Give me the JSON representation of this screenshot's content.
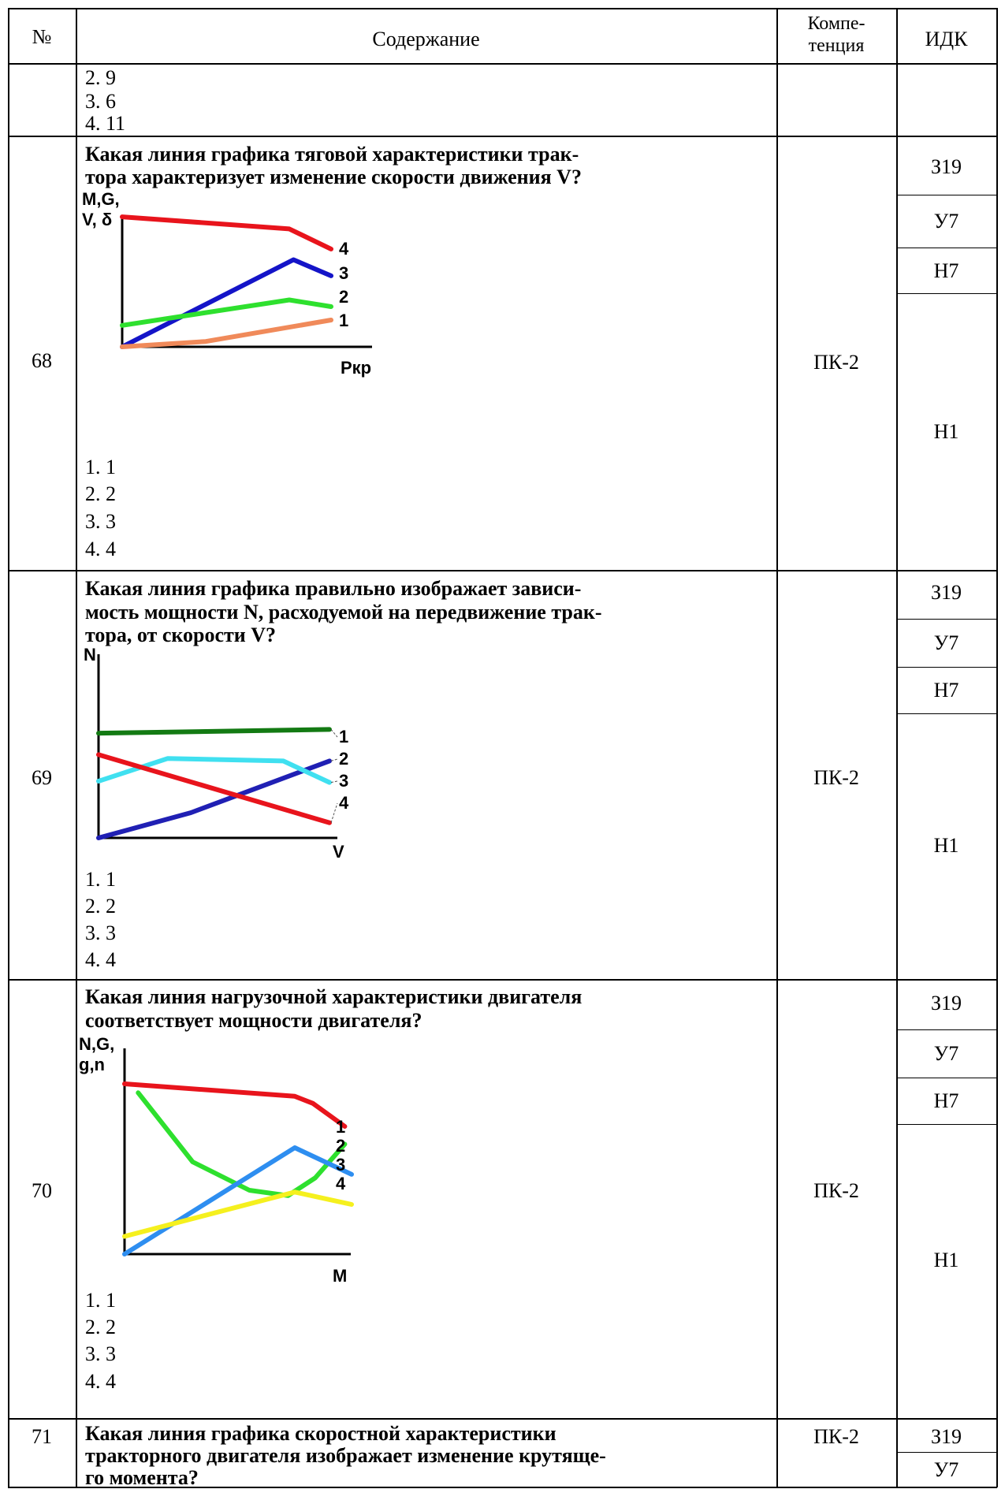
{
  "header": {
    "num": "№",
    "content": "Содержание",
    "comp_line1": "Компе-",
    "comp_line2": "тенция",
    "idk": "ИДК"
  },
  "top_options": [
    "2. 9",
    "3. 6",
    "4. 11"
  ],
  "questions": [
    {
      "num": "68",
      "text_lines": [
        "Какая  линия  графика  тяговой характеристики  трак-",
        "тора характеризует  изменение скорости движения V?"
      ],
      "competence": "ПК-2",
      "idk": [
        "З19",
        "У7",
        "Н7",
        "Н1"
      ],
      "options": [
        "1. 1",
        "2. 2",
        "3. 3",
        "4. 4"
      ],
      "chart_data": {
        "type": "line",
        "ylabel": "M,G,\nV, δ",
        "xlabel": "Pкр",
        "series": [
          {
            "name": "4",
            "color": "#e8141c",
            "points": [
              [
                0,
                0.97
              ],
              [
                0.8,
                0.88
              ],
              [
                1,
                0.73
              ]
            ]
          },
          {
            "name": "3",
            "color": "#1414c8",
            "points": [
              [
                0,
                0.0
              ],
              [
                0.82,
                0.65
              ],
              [
                1,
                0.53
              ]
            ]
          },
          {
            "name": "2",
            "color": "#2ee02e",
            "points": [
              [
                0,
                0.16
              ],
              [
                0.8,
                0.35
              ],
              [
                1,
                0.3
              ]
            ]
          },
          {
            "name": "1",
            "color": "#f08a5a",
            "points": [
              [
                0,
                0.0
              ],
              [
                0.4,
                0.04
              ],
              [
                1,
                0.2
              ]
            ]
          }
        ]
      }
    },
    {
      "num": "69",
      "text_lines": [
        "Какая  линия  графика правильно  изображает зависи-",
        "мость  мощности  N, расходуемой на передвижение трак-",
        "тора, от скорости V?"
      ],
      "competence": "ПК-2",
      "idk": [
        "З19",
        "У7",
        "Н7",
        "Н1"
      ],
      "options": [
        "1. 1",
        "2. 2",
        "3. 3",
        "4. 4"
      ],
      "chart_data": {
        "type": "line",
        "ylabel": "N",
        "xlabel": "V",
        "series": [
          {
            "name": "1",
            "color": "#137a13",
            "points": [
              [
                0,
                0.83
              ],
              [
                1,
                0.86
              ]
            ]
          },
          {
            "name": "2",
            "color": "#2020b4",
            "points": [
              [
                0,
                0.0
              ],
              [
                0.4,
                0.2
              ],
              [
                1,
                0.61
              ]
            ]
          },
          {
            "name": "3",
            "color": "#40e0f0",
            "points": [
              [
                0,
                0.45
              ],
              [
                0.3,
                0.63
              ],
              [
                0.8,
                0.61
              ],
              [
                1,
                0.44
              ]
            ]
          },
          {
            "name": "4",
            "color": "#e8141c",
            "points": [
              [
                0,
                0.66
              ],
              [
                1,
                0.12
              ]
            ]
          }
        ]
      }
    },
    {
      "num": "70",
      "text_lines": [
        "Какая  линия  нагрузочной характеристики  двигателя",
        "соответствует  мощности двигателя?"
      ],
      "competence": "ПК-2",
      "idk": [
        "З19",
        "У7",
        "Н7",
        "Н1"
      ],
      "options": [
        "1. 1",
        "2. 2",
        "3. 3",
        "4. 4"
      ],
      "chart_data": {
        "type": "line",
        "ylabel": "N,G,\ng,n",
        "xlabel": "M",
        "series": [
          {
            "name": "1",
            "color": "#e8141c",
            "points": [
              [
                0,
                0.96
              ],
              [
                0.75,
                0.89
              ],
              [
                0.83,
                0.85
              ],
              [
                0.97,
                0.72
              ]
            ]
          },
          {
            "name": "2",
            "color": "#2ee02e",
            "points": [
              [
                0.06,
                0.91
              ],
              [
                0.3,
                0.52
              ],
              [
                0.55,
                0.36
              ],
              [
                0.72,
                0.33
              ],
              [
                0.84,
                0.43
              ],
              [
                0.97,
                0.62
              ]
            ]
          },
          {
            "name": "3",
            "color": "#2e8ef0",
            "points": [
              [
                0,
                0.0
              ],
              [
                0.75,
                0.6
              ],
              [
                1,
                0.45
              ]
            ]
          },
          {
            "name": "4",
            "color": "#f5f01e",
            "points": [
              [
                0,
                0.1
              ],
              [
                0.75,
                0.35
              ],
              [
                1,
                0.28
              ]
            ]
          }
        ]
      }
    },
    {
      "num": "71",
      "text_lines": [
        "Какая  линия  графика скоростной  характеристики",
        "тракторного  двигателя изображает  изменение крутяще-",
        "го момента?"
      ],
      "competence": "ПК-2",
      "idk": [
        "З19",
        "У7"
      ]
    }
  ]
}
